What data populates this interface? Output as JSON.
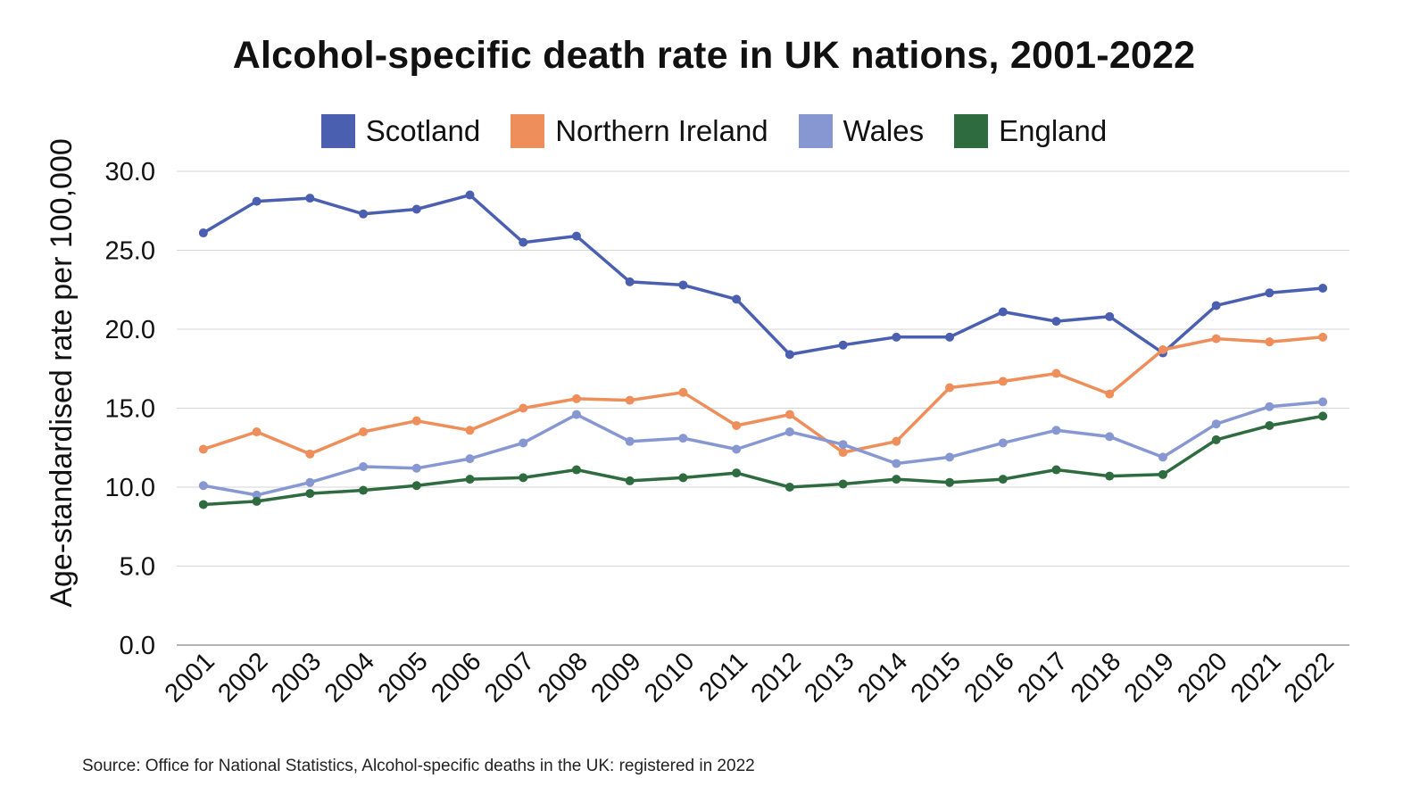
{
  "chart_data": {
    "type": "line",
    "title": "Alcohol-specific death rate in UK nations, 2001-2022",
    "xlabel": "",
    "ylabel": "Age-standardised rate per 100,000",
    "ylim": [
      0,
      30
    ],
    "yticks": [
      "0.0",
      "5.0",
      "10.0",
      "15.0",
      "20.0",
      "25.0",
      "30.0"
    ],
    "ytick_values": [
      0,
      5,
      10,
      15,
      20,
      25,
      30
    ],
    "grid": true,
    "legend_position": "top-center",
    "x": [
      "2001",
      "2002",
      "2003",
      "2004",
      "2005",
      "2006",
      "2007",
      "2008",
      "2009",
      "2010",
      "2011",
      "2012",
      "2013",
      "2014",
      "2015",
      "2016",
      "2017",
      "2018",
      "2019",
      "2020",
      "2021",
      "2022"
    ],
    "series": [
      {
        "name": "Scotland",
        "color": "#4a5fb0",
        "values": [
          26.1,
          28.1,
          28.3,
          27.3,
          27.6,
          28.5,
          25.5,
          25.9,
          23.0,
          22.8,
          21.9,
          18.4,
          19.0,
          19.5,
          19.5,
          21.1,
          20.5,
          20.8,
          18.5,
          21.5,
          22.3,
          22.6
        ]
      },
      {
        "name": "Northern Ireland",
        "color": "#ee8e5a",
        "values": [
          12.4,
          13.5,
          12.1,
          13.5,
          14.2,
          13.6,
          15.0,
          15.6,
          15.5,
          16.0,
          13.9,
          14.6,
          12.2,
          12.9,
          16.3,
          16.7,
          17.2,
          15.9,
          18.7,
          19.4,
          19.2,
          19.5
        ]
      },
      {
        "name": "Wales",
        "color": "#8797d1",
        "values": [
          10.1,
          9.5,
          10.3,
          11.3,
          11.2,
          11.8,
          12.8,
          14.6,
          12.9,
          13.1,
          12.4,
          13.5,
          12.7,
          11.5,
          11.9,
          12.8,
          13.6,
          13.2,
          11.9,
          14.0,
          15.1,
          15.4
        ]
      },
      {
        "name": "England",
        "color": "#2e6b3f",
        "values": [
          8.9,
          9.1,
          9.6,
          9.8,
          10.1,
          10.5,
          10.6,
          11.1,
          10.4,
          10.6,
          10.9,
          10.0,
          10.2,
          10.5,
          10.3,
          10.5,
          11.1,
          10.7,
          10.8,
          13.0,
          13.9,
          14.5
        ]
      }
    ],
    "source": "Source: Office for National Statistics, Alcohol-specific deaths in the UK: registered in 2022"
  }
}
